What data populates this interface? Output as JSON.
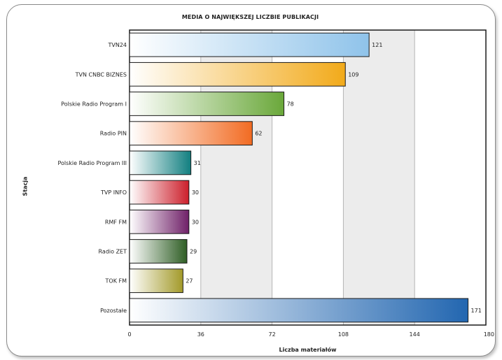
{
  "chart_data": {
    "type": "bar",
    "orientation": "horizontal",
    "title": "MEDIA O NAJWIĘKSZEJ LICZBIE PUBLIKACJI",
    "xlabel": "Liczba materiałów",
    "ylabel": "Stacja",
    "xlim": [
      0,
      180
    ],
    "xticks": [
      0,
      36,
      72,
      108,
      144,
      180
    ],
    "grid": "vertical-bands",
    "categories": [
      "TVN24",
      "TVN CNBC BIZNES",
      "Polskie Radio Program I",
      "Radio PIN",
      "Polskie Radio Program III",
      "TVP INFO",
      "RMF FM",
      "Radio ZET",
      "TOK FM",
      "Pozostałe"
    ],
    "values": [
      121,
      109,
      78,
      62,
      31,
      30,
      30,
      29,
      27,
      171
    ],
    "colors": [
      "#8fc3ea",
      "#f2aa1a",
      "#6aa83a",
      "#f26b22",
      "#117f80",
      "#cc1f2b",
      "#6f2068",
      "#2f5e25",
      "#a39a2a",
      "#2266b0"
    ]
  }
}
